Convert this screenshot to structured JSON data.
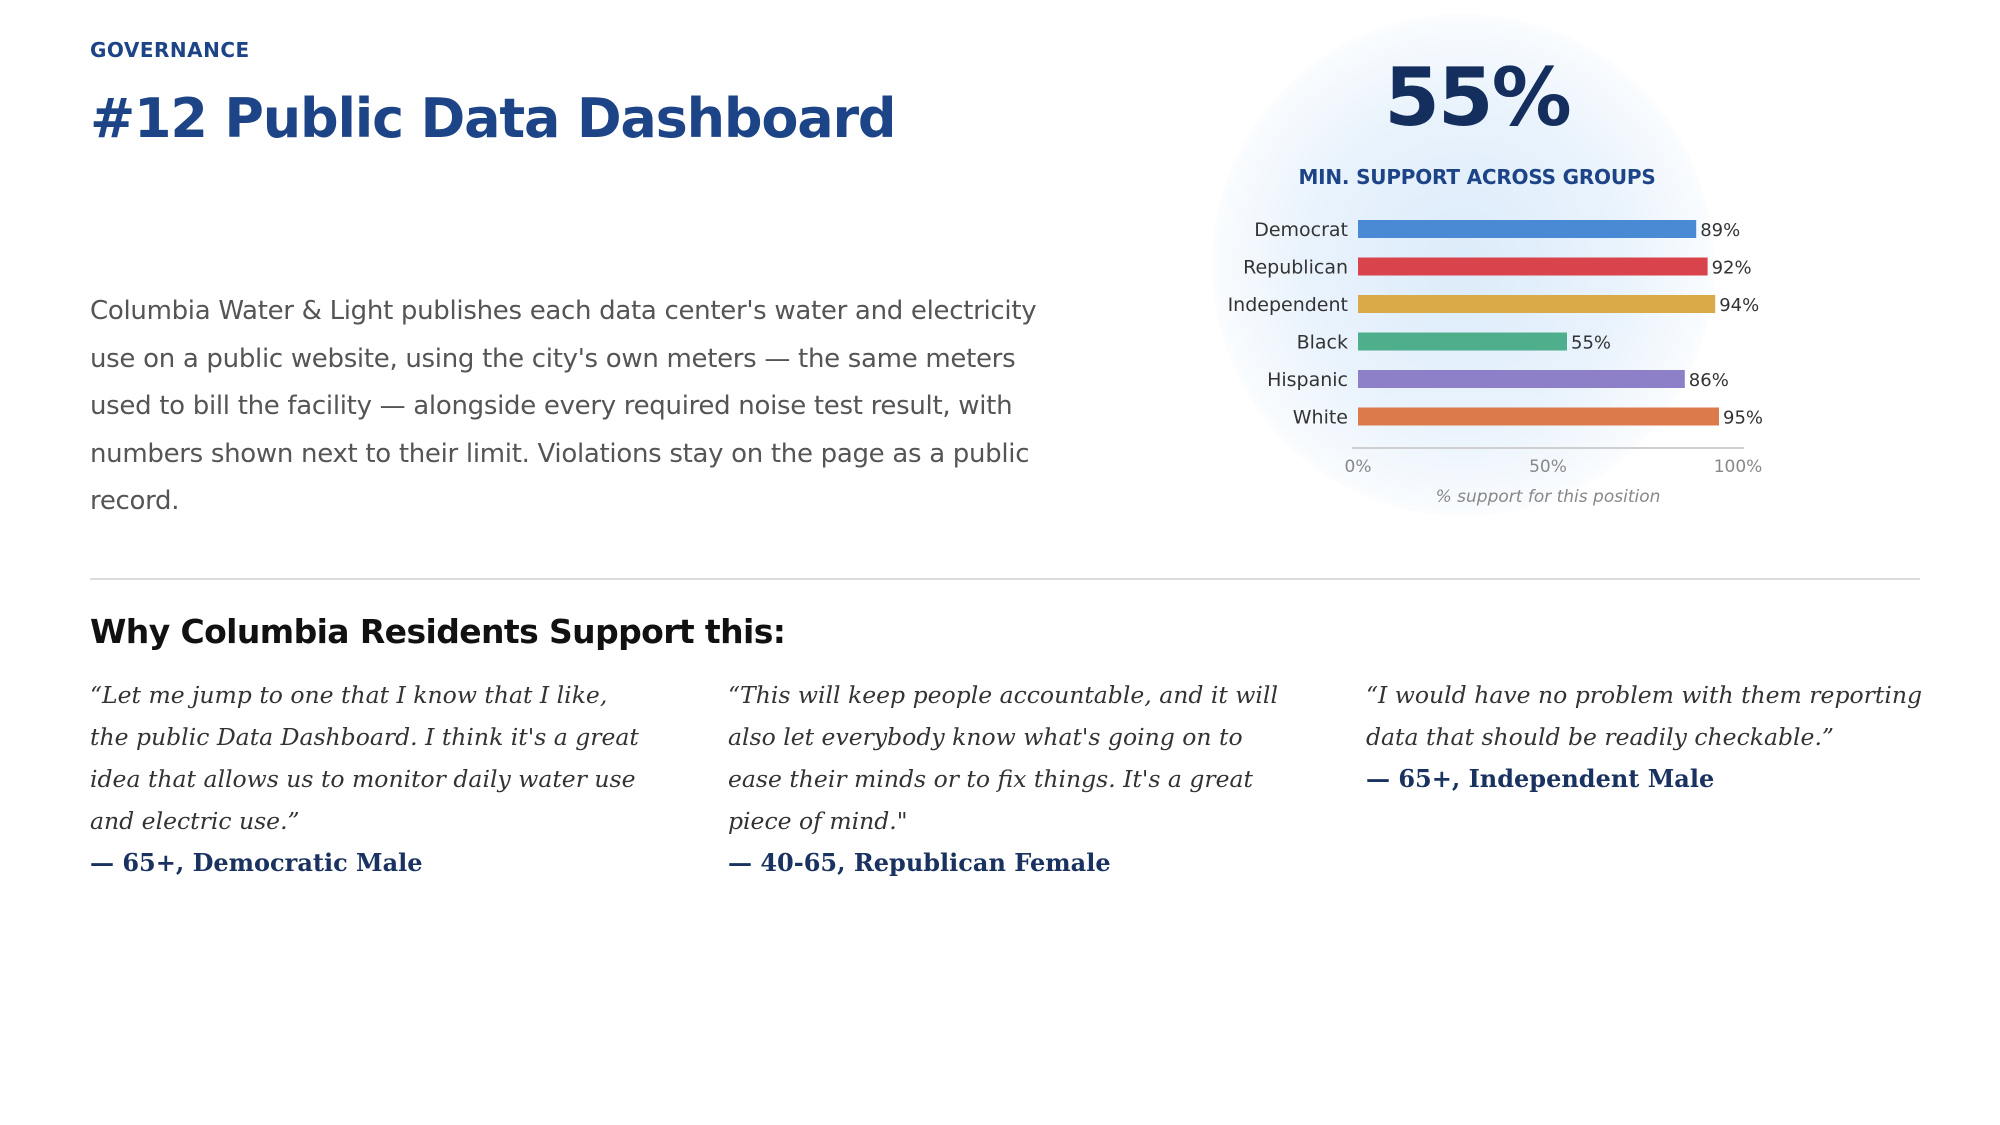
{
  "header": {
    "category": "GOVERNANCE",
    "title": "#12 Public Data Dashboard"
  },
  "description": "Columbia Water & Light publishes each data center's water and electricity use on a public website, using the city's own meters — the same meters used to bill the facility — alongside every required noise test result, with numbers shown next to their limit. Violations stay on the page as a public record.",
  "summary": {
    "value": "55%",
    "label": "MIN. SUPPORT ACROSS GROUPS"
  },
  "chart_data": {
    "type": "bar",
    "orientation": "horizontal",
    "categories": [
      "Democrat",
      "Republican",
      "Independent",
      "Black",
      "Hispanic",
      "White"
    ],
    "values": [
      89,
      92,
      94,
      55,
      86,
      95
    ],
    "value_labels": [
      "89%",
      "92%",
      "94%",
      "55%",
      "86%",
      "95%"
    ],
    "colors": [
      "#4a8ad4",
      "#d9434b",
      "#d9aa48",
      "#4fae8c",
      "#8e7fc9",
      "#dd7a4c"
    ],
    "xlim": [
      0,
      100
    ],
    "xticks": [
      "0%",
      "50%",
      "100%"
    ],
    "xlabel": "% support for this position",
    "grid": false,
    "legend": "none"
  },
  "section": {
    "title": "Why Columbia Residents Support this:"
  },
  "quotes": [
    {
      "text": "“Let me jump to one that I know that I like, the public Data Dashboard. I think it's a great idea that allows us to monitor daily water use and electric use.”",
      "attribution": "— 65+, Democratic Male"
    },
    {
      "text": "“This will keep people accountable, and it will also let everybody know what's going on to ease their minds or to fix things. It's a great piece of mind.\"",
      "attribution": "— 40-65, Republican Female"
    },
    {
      "text": "“I would have no problem with them reporting data that should be readily checkable.”",
      "attribution": "— 65+, Independent Male"
    }
  ]
}
